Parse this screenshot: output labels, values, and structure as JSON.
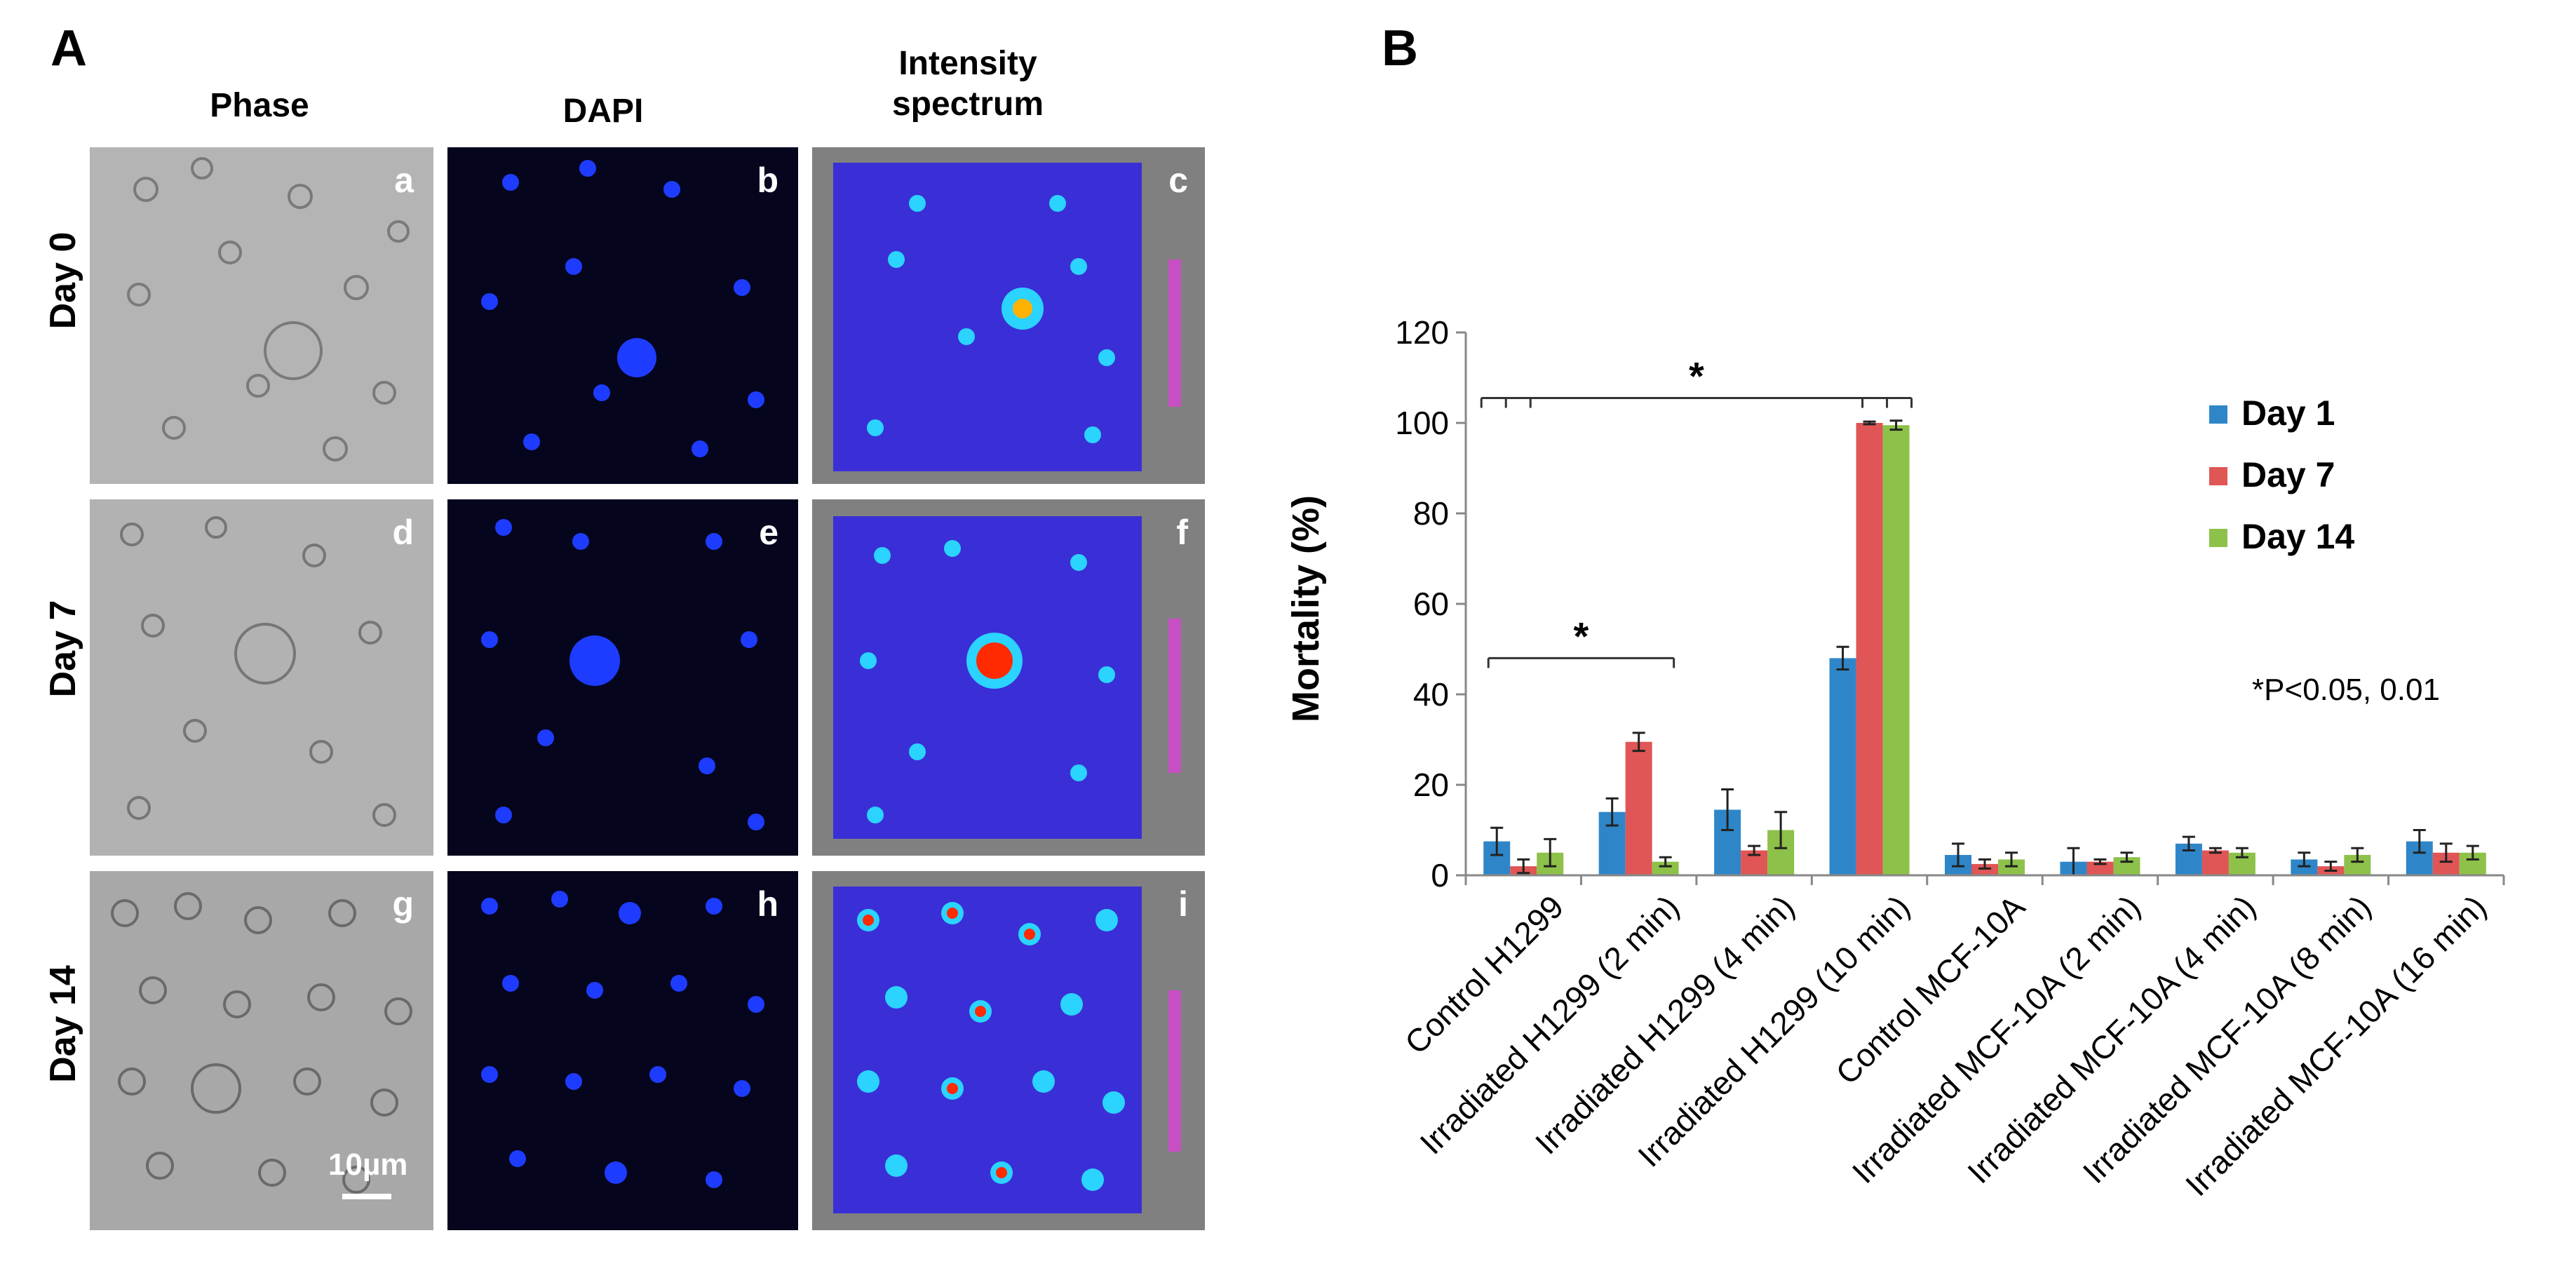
{
  "figure": {
    "panel_a_label": "A",
    "panel_b_label": "B",
    "columns": [
      "Phase",
      "DAPI",
      "Intensity\nspectrum"
    ],
    "rows": [
      "Day 0",
      "Day 7",
      "Day 14"
    ],
    "tile_labels": [
      "a",
      "b",
      "c",
      "d",
      "e",
      "f",
      "g",
      "h",
      "i"
    ],
    "scale_bar_label": "10µm"
  },
  "chart_data": {
    "type": "bar",
    "title": "",
    "ylabel": "Mortality (%)",
    "xlabel": "",
    "ylim": [
      0,
      120
    ],
    "yticks": [
      0,
      20,
      40,
      60,
      80,
      100,
      120
    ],
    "categories": [
      "Control H1299",
      "Irradiated H1299 (2 min)",
      "Irradiated H1299 (4 min)",
      "Irradiated H1299 (10 min)",
      "Control MCF-10A",
      "Irradiated MCF-10A (2 min)",
      "Irradiated MCF-10A (4 min)",
      "Irradiated MCF-10A (8 min)",
      "Irradiated MCF-10A (16 min)"
    ],
    "series": [
      {
        "name": "Day 1",
        "color": "#2E86C8",
        "values": [
          7.5,
          14,
          14.5,
          48,
          4.5,
          3,
          7,
          3.5,
          7.5
        ],
        "errors": [
          3,
          3,
          4.5,
          2.5,
          2.5,
          3,
          1.5,
          1.5,
          2.5
        ]
      },
      {
        "name": "Day 7",
        "color": "#E05555",
        "values": [
          2,
          29.5,
          5.5,
          100,
          2.5,
          3,
          5.5,
          2,
          5
        ],
        "errors": [
          1.5,
          2,
          1,
          0.3,
          1,
          0.5,
          0.5,
          1,
          2
        ]
      },
      {
        "name": "Day 14",
        "color": "#8DC149",
        "values": [
          5,
          3,
          10,
          99.5,
          3.5,
          4,
          5,
          4.5,
          5
        ],
        "errors": [
          3,
          1,
          4,
          1,
          1.5,
          1,
          1,
          1.5,
          1.5
        ]
      }
    ],
    "annotations": {
      "significance_marker": "*",
      "pvalue_note": "*P<0.05, 0.01"
    }
  }
}
